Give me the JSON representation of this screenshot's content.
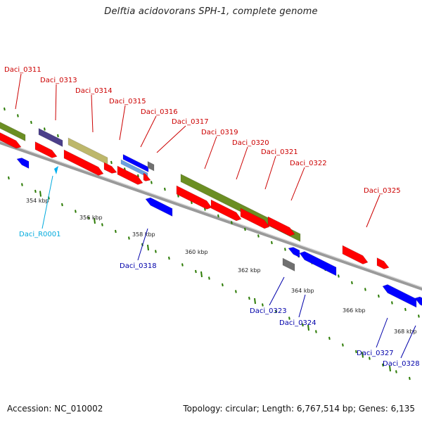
{
  "title": "Delftia acidovorans SPH-1, complete genome",
  "footer": {
    "accession": "Accession: NC_010002",
    "summary": "Topology: circular; Length: 6,767,514 bp; Genes: 6,135"
  },
  "colors": {
    "plus_strand_gene": "#ff0000",
    "minus_strand_gene": "#0000ff",
    "rna_gene": "#00b0f0",
    "plus_label": "#cc0000",
    "minus_label": "#0000aa",
    "rna_label": "#00aadd",
    "backbone": "#909090",
    "ticks": "#2a7a00",
    "operon_green": "#6b8e23",
    "operon_purple": "#4b3f8a",
    "operon_khaki": "#bdb76b",
    "pseudo_gray": "#707070"
  },
  "scale_labels": [
    "354 kbp",
    "356 kbp",
    "358 kbp",
    "360 kbp",
    "362 kbp",
    "364 kbp",
    "366 kbp",
    "368 kbp"
  ],
  "plus_labels": [
    "Daci_0311",
    "Daci_0313",
    "Daci_0314",
    "Daci_0315",
    "Daci_0316",
    "Daci_0317",
    "Daci_0319",
    "Daci_0320",
    "Daci_0321",
    "Daci_0322",
    "Daci_0325"
  ],
  "minus_labels": [
    "Daci_0318",
    "Daci_0323",
    "Daci_0324",
    "Daci_0327",
    "Daci_0328"
  ],
  "rna_labels": [
    "Daci_R0001"
  ]
}
